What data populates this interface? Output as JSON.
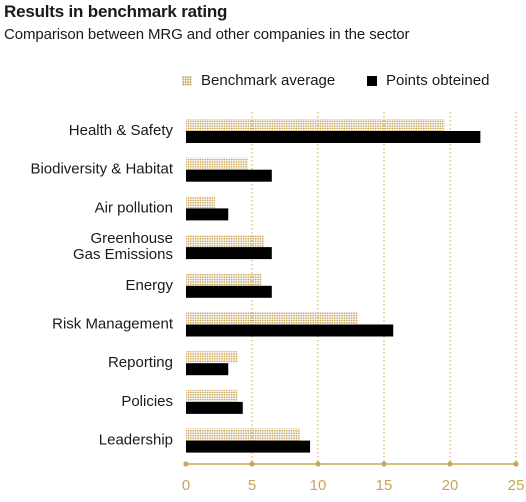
{
  "chart_data": {
    "type": "bar",
    "orientation": "horizontal",
    "title": "Results in benchmark rating",
    "subtitle": "Comparison between MRG and other companies in the sector",
    "categories": [
      "Health & Safety",
      "Biodiversity & Habitat",
      "Air pollution",
      [
        "Greenhouse",
        "Gas Emissions"
      ],
      "Energy",
      "Risk Management",
      "Reporting",
      "Policies",
      "Leadership"
    ],
    "series": [
      {
        "name": "Benchmark average",
        "values": [
          19.6,
          4.7,
          2.2,
          5.9,
          5.7,
          13.0,
          3.9,
          3.9,
          8.6
        ]
      },
      {
        "name": "Points obteined",
        "values": [
          22.3,
          6.5,
          3.2,
          6.5,
          6.5,
          15.7,
          3.2,
          4.3,
          9.4
        ]
      }
    ],
    "xlim": [
      0,
      25
    ],
    "xticks": [
      0,
      5,
      10,
      15,
      20,
      25
    ],
    "grid": "vertical dotted",
    "legend_position": "top",
    "colors": {
      "benchmark": "#c8a55a",
      "points": "#000000",
      "axis": "#c8a55a",
      "tick_labels": "#c8a55a"
    }
  }
}
